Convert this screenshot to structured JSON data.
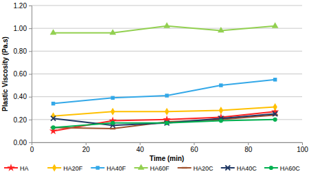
{
  "chart_data": {
    "type": "line",
    "x_label": "Time (min)",
    "y_label": "Plastic Viscosity (Pa.s)",
    "x": [
      8,
      30,
      50,
      70,
      90
    ],
    "series": [
      {
        "name": "HA",
        "color": "#ff2222",
        "marker": "star",
        "values": [
          0.1,
          0.19,
          0.2,
          0.22,
          0.27
        ]
      },
      {
        "name": "HA20F",
        "color": "#ffc000",
        "marker": "diamond",
        "values": [
          0.23,
          0.27,
          0.27,
          0.28,
          0.31
        ]
      },
      {
        "name": "HA40F",
        "color": "#33a8e8",
        "marker": "square",
        "values": [
          0.34,
          0.39,
          0.41,
          0.5,
          0.55
        ]
      },
      {
        "name": "HA60F",
        "color": "#92d050",
        "marker": "triangle",
        "values": [
          0.96,
          0.96,
          1.02,
          0.98,
          1.02
        ]
      },
      {
        "name": "HA20C",
        "color": "#a0522d",
        "marker": "dash",
        "values": [
          0.13,
          0.12,
          0.18,
          0.2,
          0.24
        ]
      },
      {
        "name": "HA40C",
        "color": "#1f3864",
        "marker": "x",
        "values": [
          0.21,
          0.15,
          0.17,
          0.21,
          0.25
        ]
      },
      {
        "name": "HA60C",
        "color": "#00b050",
        "marker": "circle",
        "values": [
          0.13,
          0.17,
          0.17,
          0.19,
          0.2
        ]
      }
    ],
    "xlim": [
      0,
      100
    ],
    "xticks": [
      0,
      20,
      40,
      60,
      80,
      100
    ],
    "ylim": [
      0,
      1.2
    ],
    "yticks": [
      {
        "value": 0,
        "label": "0.00"
      },
      {
        "value": 0.2,
        "label": "0.20"
      },
      {
        "value": 0.4,
        "label": "0.40"
      },
      {
        "value": 0.6,
        "label": "0.60"
      },
      {
        "value": 0.8,
        "label": "0.80"
      },
      {
        "value": 1.0,
        "label": "1.00"
      },
      {
        "value": 1.2,
        "label": "1.20"
      }
    ],
    "grid": true,
    "legend": "bottom"
  }
}
